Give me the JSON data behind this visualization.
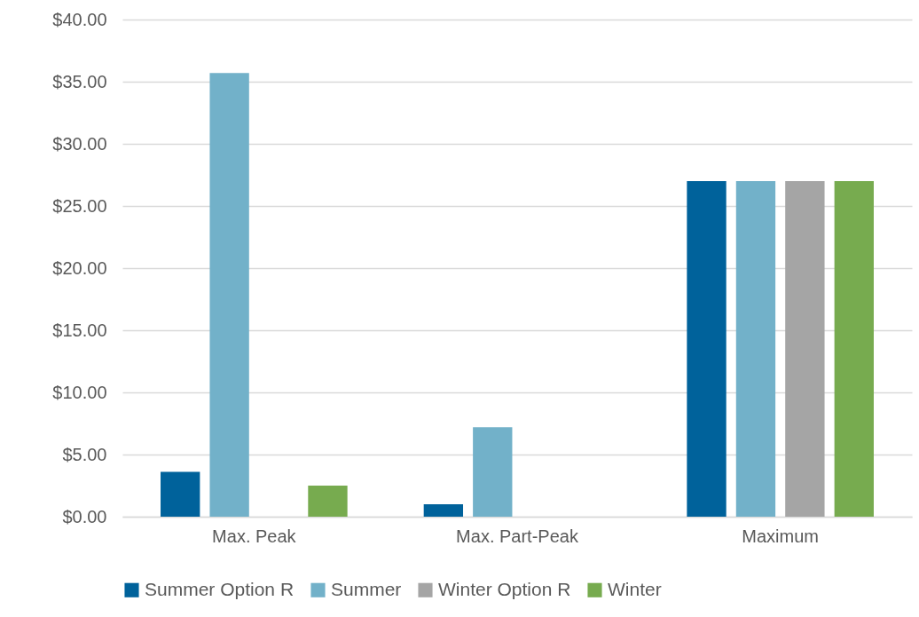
{
  "chart_data": {
    "type": "bar",
    "categories": [
      "Max. Peak",
      "Max. Part-Peak",
      "Maximum"
    ],
    "series": [
      {
        "name": "Summer Option R",
        "color": "#00629b",
        "values": [
          3.6,
          1.0,
          27.0
        ]
      },
      {
        "name": "Summer",
        "color": "#72b1c9",
        "values": [
          35.7,
          7.2,
          27.0
        ]
      },
      {
        "name": "Winter Option R",
        "color": "#a5a5a5",
        "values": [
          null,
          null,
          27.0
        ]
      },
      {
        "name": "Winter",
        "color": "#77ab4f",
        "values": [
          2.5,
          null,
          27.0
        ]
      }
    ],
    "ylim": [
      0,
      40
    ],
    "yticks": [
      {
        "value": 0,
        "label": "$0.00"
      },
      {
        "value": 5,
        "label": "$5.00"
      },
      {
        "value": 10,
        "label": "$10.00"
      },
      {
        "value": 15,
        "label": "$15.00"
      },
      {
        "value": 20,
        "label": "$20.00"
      },
      {
        "value": 25,
        "label": "$25.00"
      },
      {
        "value": 30,
        "label": "$30.00"
      },
      {
        "value": 35,
        "label": "$35.00"
      },
      {
        "value": 40,
        "label": "$40.00"
      }
    ],
    "grid": "y",
    "legend": "bottom"
  }
}
